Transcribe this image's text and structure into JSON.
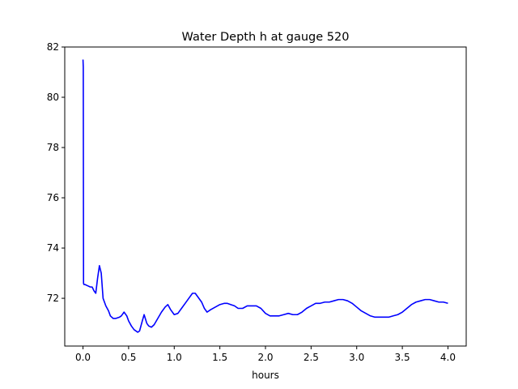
{
  "chart_data": {
    "type": "line",
    "title": "Water Depth h at gauge 520",
    "xlabel": "hours",
    "ylabel": "",
    "xlim": [
      -0.2,
      4.2
    ],
    "ylim": [
      70.1,
      82.0
    ],
    "xticks": [
      0.0,
      0.5,
      1.0,
      1.5,
      2.0,
      2.5,
      3.0,
      3.5,
      4.0
    ],
    "xtick_labels": [
      "0.0",
      "0.5",
      "1.0",
      "1.5",
      "2.0",
      "2.5",
      "3.0",
      "3.5",
      "4.0"
    ],
    "yticks": [
      72,
      74,
      76,
      78,
      80,
      82
    ],
    "ytick_labels": [
      "72",
      "74",
      "76",
      "78",
      "80",
      "82"
    ],
    "grid": false,
    "line_color": "#0000ff",
    "series": [
      {
        "x": [
          0.0,
          0.003,
          0.006,
          0.01,
          0.02,
          0.05,
          0.08,
          0.1,
          0.12,
          0.14,
          0.16,
          0.18,
          0.2,
          0.22,
          0.25,
          0.28,
          0.3,
          0.33,
          0.36,
          0.4,
          0.42,
          0.45,
          0.48,
          0.5,
          0.53,
          0.56,
          0.6,
          0.62,
          0.65,
          0.67,
          0.7,
          0.72,
          0.75,
          0.78,
          0.82,
          0.86,
          0.9,
          0.93,
          0.96,
          1.0,
          1.04,
          1.08,
          1.12,
          1.16,
          1.2,
          1.23,
          1.26,
          1.3,
          1.33,
          1.36,
          1.4,
          1.45,
          1.5,
          1.55,
          1.58,
          1.62,
          1.66,
          1.7,
          1.75,
          1.8,
          1.85,
          1.9,
          1.95,
          2.0,
          2.05,
          2.1,
          2.15,
          2.2,
          2.25,
          2.3,
          2.35,
          2.4,
          2.45,
          2.5,
          2.55,
          2.6,
          2.65,
          2.7,
          2.75,
          2.8,
          2.85,
          2.9,
          2.95,
          3.0,
          3.05,
          3.1,
          3.15,
          3.2,
          3.25,
          3.3,
          3.35,
          3.4,
          3.45,
          3.5,
          3.55,
          3.6,
          3.65,
          3.7,
          3.75,
          3.8,
          3.85,
          3.9,
          3.95,
          4.0
        ],
        "y": [
          81.5,
          81.2,
          72.6,
          72.55,
          72.55,
          72.5,
          72.45,
          72.45,
          72.3,
          72.2,
          72.8,
          73.3,
          73.0,
          72.0,
          71.7,
          71.5,
          71.3,
          71.2,
          71.2,
          71.25,
          71.3,
          71.45,
          71.3,
          71.1,
          70.9,
          70.75,
          70.65,
          70.7,
          71.1,
          71.35,
          71.0,
          70.9,
          70.85,
          70.95,
          71.2,
          71.45,
          71.65,
          71.75,
          71.55,
          71.35,
          71.4,
          71.6,
          71.8,
          72.0,
          72.2,
          72.2,
          72.05,
          71.85,
          71.6,
          71.45,
          71.55,
          71.65,
          71.75,
          71.8,
          71.8,
          71.75,
          71.7,
          71.6,
          71.6,
          71.7,
          71.7,
          71.7,
          71.6,
          71.4,
          71.3,
          71.3,
          71.3,
          71.35,
          71.4,
          71.35,
          71.35,
          71.45,
          71.6,
          71.7,
          71.8,
          71.8,
          71.85,
          71.85,
          71.9,
          71.95,
          71.95,
          71.9,
          71.8,
          71.65,
          71.5,
          71.4,
          71.3,
          71.25,
          71.25,
          71.25,
          71.25,
          71.3,
          71.35,
          71.45,
          71.6,
          71.75,
          71.85,
          71.9,
          71.95,
          71.95,
          71.9,
          71.85,
          71.85,
          71.8
        ]
      }
    ]
  }
}
